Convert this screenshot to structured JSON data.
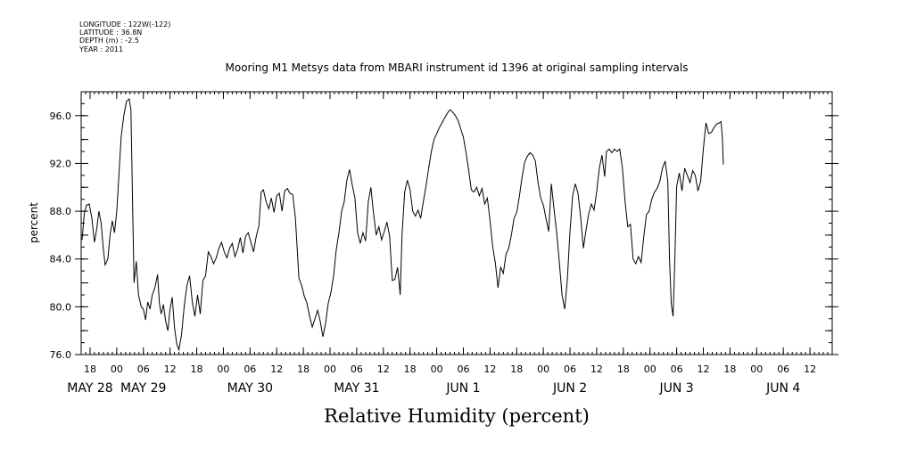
{
  "header": {
    "longitude": "LONGITUDE : 122W(-122)",
    "latitude": "LATITUDE : 36.8N",
    "depth": "DEPTH (m) : -2.5",
    "year": "YEAR : 2011"
  },
  "chart_data": {
    "type": "line",
    "title": "Mooring M1 Metsys data from MBARI instrument id 1396 at original sampling intervals",
    "xlabel": "Relative Humidity (percent)",
    "ylabel": "percent",
    "ylim": [
      76.0,
      98.0
    ],
    "xlim_hours": [
      -8,
      161
    ],
    "x_unit": "hours from 00 MAY 28 2011",
    "y_ticks": [
      "76.0",
      "80.0",
      "84.0",
      "88.0",
      "92.0",
      "96.0"
    ],
    "y_tick_values": [
      76,
      80,
      84,
      88,
      92,
      96
    ],
    "x_hour_ticks": [
      "18",
      "00",
      "06",
      "12",
      "18",
      "00",
      "06",
      "12",
      "18",
      "00",
      "06",
      "12",
      "18",
      "00",
      "06",
      "12",
      "18",
      "00",
      "06",
      "12",
      "18",
      "00",
      "06",
      "12",
      "18",
      "00",
      "06",
      "12",
      "18",
      "00",
      "06",
      "12"
    ],
    "x_hour_tick_values": [
      -6,
      0,
      6,
      12,
      18,
      24,
      30,
      36,
      42,
      48,
      54,
      60,
      66,
      72,
      78,
      84,
      90,
      96,
      102,
      108,
      114,
      120,
      126,
      132,
      138,
      144,
      150,
      156,
      162,
      168,
      174,
      180
    ],
    "x_date_labels": [
      "MAY 28",
      "MAY 29",
      "MAY 30",
      "MAY 31",
      "JUN  1",
      "JUN  2",
      "JUN  3",
      "JUN  4"
    ],
    "x_date_values": [
      -6,
      6,
      30,
      54,
      78,
      102,
      126,
      150
    ],
    "grid": false,
    "legend": "none",
    "series": [
      {
        "color": "#000000",
        "points": [
          [
            -7.8,
            85.6
          ],
          [
            -7.3,
            87.8
          ],
          [
            -6.8,
            88.5
          ],
          [
            -6.2,
            88.6
          ],
          [
            -5.6,
            87.4
          ],
          [
            -5.0,
            85.4
          ],
          [
            -4.5,
            86.5
          ],
          [
            -4.0,
            88.0
          ],
          [
            -3.5,
            87.0
          ],
          [
            -3.0,
            84.8
          ],
          [
            -2.6,
            83.5
          ],
          [
            -2.0,
            84.0
          ],
          [
            -1.5,
            86.0
          ],
          [
            -1.0,
            87.2
          ],
          [
            -0.5,
            86.2
          ],
          [
            0.0,
            88.0
          ],
          [
            0.5,
            91.0
          ],
          [
            1.0,
            94.2
          ],
          [
            1.6,
            96.0
          ],
          [
            2.2,
            97.2
          ],
          [
            2.8,
            97.4
          ],
          [
            3.2,
            96.5
          ],
          [
            3.6,
            88.0
          ],
          [
            3.9,
            82.0
          ],
          [
            4.4,
            83.8
          ],
          [
            4.9,
            81.0
          ],
          [
            5.5,
            80.0
          ],
          [
            6.0,
            79.8
          ],
          [
            6.5,
            78.9
          ],
          [
            7.0,
            80.4
          ],
          [
            7.5,
            79.8
          ],
          [
            8.0,
            81.0
          ],
          [
            8.6,
            81.6
          ],
          [
            9.2,
            82.7
          ],
          [
            9.6,
            80.3
          ],
          [
            10.0,
            79.4
          ],
          [
            10.5,
            80.2
          ],
          [
            11.0,
            78.8
          ],
          [
            11.5,
            78.0
          ],
          [
            12.0,
            79.8
          ],
          [
            12.5,
            80.8
          ],
          [
            13.0,
            78.3
          ],
          [
            13.5,
            76.9
          ],
          [
            14.0,
            76.4
          ],
          [
            14.6,
            77.7
          ],
          [
            15.2,
            80.1
          ],
          [
            15.8,
            81.8
          ],
          [
            16.4,
            82.6
          ],
          [
            17.0,
            80.4
          ],
          [
            17.6,
            79.2
          ],
          [
            18.2,
            81.0
          ],
          [
            18.8,
            79.4
          ],
          [
            19.4,
            82.2
          ],
          [
            20.0,
            82.6
          ],
          [
            20.6,
            84.6
          ],
          [
            21.2,
            84.2
          ],
          [
            21.8,
            83.6
          ],
          [
            22.4,
            84.1
          ],
          [
            23.0,
            84.9
          ],
          [
            23.6,
            85.4
          ],
          [
            24.2,
            84.6
          ],
          [
            24.8,
            84.1
          ],
          [
            25.4,
            84.9
          ],
          [
            26.0,
            85.3
          ],
          [
            26.6,
            84.2
          ],
          [
            27.2,
            84.8
          ],
          [
            27.8,
            85.8
          ],
          [
            28.4,
            84.5
          ],
          [
            29.0,
            85.9
          ],
          [
            29.6,
            86.2
          ],
          [
            30.2,
            85.4
          ],
          [
            30.8,
            84.6
          ],
          [
            31.4,
            85.9
          ],
          [
            32.0,
            86.8
          ],
          [
            32.5,
            89.6
          ],
          [
            33.0,
            89.8
          ],
          [
            33.6,
            88.8
          ],
          [
            34.2,
            88.2
          ],
          [
            34.8,
            89.1
          ],
          [
            35.4,
            87.9
          ],
          [
            36.0,
            89.3
          ],
          [
            36.6,
            89.5
          ],
          [
            37.2,
            88.0
          ],
          [
            37.8,
            89.7
          ],
          [
            38.4,
            89.9
          ],
          [
            39.0,
            89.5
          ],
          [
            39.6,
            89.4
          ],
          [
            40.2,
            87.5
          ],
          [
            40.6,
            85.0
          ],
          [
            41.0,
            82.4
          ],
          [
            41.6,
            81.8
          ],
          [
            42.2,
            80.9
          ],
          [
            42.8,
            80.3
          ],
          [
            43.4,
            79.2
          ],
          [
            44.0,
            78.3
          ],
          [
            44.6,
            79.0
          ],
          [
            45.2,
            79.7
          ],
          [
            45.8,
            78.8
          ],
          [
            46.4,
            77.5
          ],
          [
            47.0,
            78.6
          ],
          [
            47.6,
            80.3
          ],
          [
            48.2,
            81.2
          ],
          [
            48.8,
            82.6
          ],
          [
            49.4,
            84.8
          ],
          [
            50.0,
            86.2
          ],
          [
            50.6,
            88.0
          ],
          [
            51.2,
            88.8
          ],
          [
            51.8,
            90.6
          ],
          [
            52.4,
            91.5
          ],
          [
            53.0,
            90.2
          ],
          [
            53.6,
            89.1
          ],
          [
            54.2,
            86.2
          ],
          [
            54.8,
            85.3
          ],
          [
            55.4,
            86.2
          ],
          [
            56.0,
            85.5
          ],
          [
            56.6,
            88.8
          ],
          [
            57.2,
            90.0
          ],
          [
            57.8,
            87.8
          ],
          [
            58.4,
            86.0
          ],
          [
            59.0,
            86.7
          ],
          [
            59.6,
            85.6
          ],
          [
            60.2,
            86.3
          ],
          [
            60.8,
            87.1
          ],
          [
            61.4,
            85.9
          ],
          [
            62.0,
            82.2
          ],
          [
            62.6,
            82.3
          ],
          [
            63.2,
            83.3
          ],
          [
            63.8,
            81.0
          ],
          [
            64.2,
            86.0
          ],
          [
            64.8,
            89.6
          ],
          [
            65.4,
            90.6
          ],
          [
            66.0,
            89.8
          ],
          [
            66.6,
            88.0
          ],
          [
            67.2,
            87.6
          ],
          [
            67.8,
            88.1
          ],
          [
            68.4,
            87.4
          ],
          [
            69.0,
            88.8
          ],
          [
            69.6,
            90.1
          ],
          [
            70.2,
            91.6
          ],
          [
            70.8,
            93.0
          ],
          [
            71.4,
            94.0
          ],
          [
            72.0,
            94.5
          ],
          [
            72.6,
            95.0
          ],
          [
            73.2,
            95.4
          ],
          [
            73.8,
            95.8
          ],
          [
            74.4,
            96.2
          ],
          [
            75.0,
            96.5
          ],
          [
            75.6,
            96.3
          ],
          [
            76.2,
            96.0
          ],
          [
            76.8,
            95.6
          ],
          [
            77.4,
            94.9
          ],
          [
            78.0,
            94.2
          ],
          [
            78.6,
            92.9
          ],
          [
            79.2,
            91.4
          ],
          [
            79.8,
            89.8
          ],
          [
            80.4,
            89.6
          ],
          [
            81.0,
            90.0
          ],
          [
            81.6,
            89.3
          ],
          [
            82.2,
            89.9
          ],
          [
            82.8,
            88.6
          ],
          [
            83.4,
            89.1
          ],
          [
            84.0,
            87.2
          ],
          [
            84.6,
            85.0
          ],
          [
            85.2,
            83.7
          ],
          [
            85.8,
            81.6
          ],
          [
            86.4,
            83.3
          ],
          [
            87.0,
            82.8
          ],
          [
            87.6,
            84.4
          ],
          [
            88.2,
            84.9
          ],
          [
            88.8,
            86.0
          ],
          [
            89.4,
            87.4
          ],
          [
            90.0,
            87.9
          ],
          [
            90.6,
            89.2
          ],
          [
            91.2,
            90.8
          ],
          [
            91.8,
            92.1
          ],
          [
            92.4,
            92.6
          ],
          [
            93.0,
            92.9
          ],
          [
            93.6,
            92.7
          ],
          [
            94.2,
            92.2
          ],
          [
            94.8,
            90.4
          ],
          [
            95.4,
            89.1
          ],
          [
            96.0,
            88.5
          ],
          [
            96.6,
            87.4
          ],
          [
            97.2,
            86.3
          ],
          [
            97.8,
            90.3
          ],
          [
            98.4,
            88.2
          ],
          [
            99.0,
            86.2
          ],
          [
            99.6,
            83.7
          ],
          [
            100.2,
            81.0
          ],
          [
            100.8,
            79.8
          ],
          [
            101.4,
            82.3
          ],
          [
            102.0,
            86.3
          ],
          [
            102.6,
            89.3
          ],
          [
            103.2,
            90.3
          ],
          [
            103.8,
            89.5
          ],
          [
            104.4,
            87.5
          ],
          [
            105.0,
            84.9
          ],
          [
            105.6,
            86.4
          ],
          [
            106.2,
            87.8
          ],
          [
            106.8,
            88.6
          ],
          [
            107.4,
            88.1
          ],
          [
            108.0,
            89.6
          ],
          [
            108.6,
            91.6
          ],
          [
            109.2,
            92.7
          ],
          [
            109.8,
            90.9
          ],
          [
            110.2,
            93.0
          ],
          [
            110.8,
            93.2
          ],
          [
            111.4,
            92.9
          ],
          [
            112.0,
            93.2
          ],
          [
            112.6,
            93.0
          ],
          [
            113.2,
            93.2
          ],
          [
            113.8,
            91.6
          ],
          [
            114.4,
            88.8
          ],
          [
            115.0,
            86.7
          ],
          [
            115.6,
            86.9
          ],
          [
            116.2,
            84.0
          ],
          [
            116.8,
            83.6
          ],
          [
            117.4,
            84.2
          ],
          [
            118.0,
            83.7
          ],
          [
            118.6,
            85.9
          ],
          [
            119.2,
            87.7
          ],
          [
            119.8,
            88.0
          ],
          [
            120.4,
            89.0
          ],
          [
            121.0,
            89.6
          ],
          [
            121.6,
            89.9
          ],
          [
            122.2,
            90.5
          ],
          [
            122.8,
            91.6
          ],
          [
            123.4,
            92.2
          ],
          [
            124.0,
            90.5
          ],
          [
            124.4,
            84.0
          ],
          [
            124.8,
            80.2
          ],
          [
            125.2,
            79.2
          ],
          [
            125.6,
            84.0
          ],
          [
            126.0,
            90.1
          ],
          [
            126.6,
            91.2
          ],
          [
            127.2,
            89.7
          ],
          [
            127.8,
            91.6
          ],
          [
            128.4,
            91.0
          ],
          [
            129.0,
            90.4
          ],
          [
            129.6,
            91.4
          ],
          [
            130.2,
            91.0
          ],
          [
            130.8,
            89.7
          ],
          [
            131.4,
            90.5
          ],
          [
            132.0,
            93.2
          ],
          [
            132.6,
            95.4
          ],
          [
            133.2,
            94.5
          ],
          [
            133.8,
            94.6
          ],
          [
            134.4,
            95.0
          ],
          [
            135.0,
            95.3
          ],
          [
            135.6,
            95.4
          ],
          [
            136.0,
            95.5
          ],
          [
            136.3,
            94.1
          ],
          [
            136.5,
            91.9
          ]
        ]
      }
    ]
  }
}
